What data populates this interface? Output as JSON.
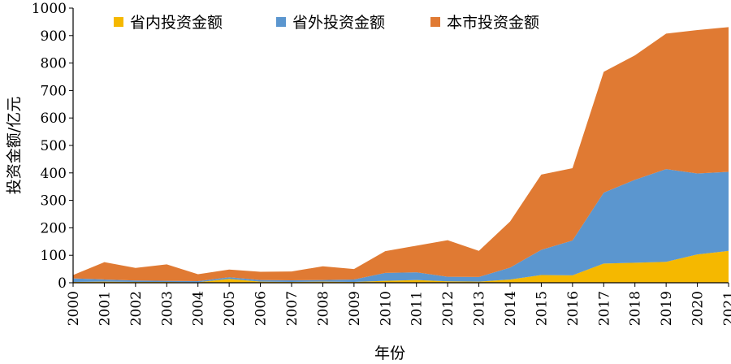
{
  "chart_data": {
    "type": "area",
    "stacked": true,
    "x": [
      "2000",
      "2001",
      "2002",
      "2003",
      "2004",
      "2005",
      "2006",
      "2007",
      "2008",
      "2009",
      "2010",
      "2011",
      "2012",
      "2013",
      "2014",
      "2015",
      "2016",
      "2017",
      "2018",
      "2019",
      "2020",
      "2021"
    ],
    "series": [
      {
        "name": "省内投资金额",
        "color": "#F5B800",
        "values": [
          3,
          4,
          3,
          3,
          2,
          14,
          4,
          3,
          4,
          3,
          7,
          10,
          5,
          4,
          12,
          28,
          27,
          70,
          73,
          76,
          103,
          116
        ]
      },
      {
        "name": "省外投资金额",
        "color": "#5B96CF",
        "values": [
          13,
          8,
          5,
          4,
          4,
          6,
          6,
          6,
          6,
          9,
          29,
          28,
          17,
          17,
          43,
          92,
          127,
          258,
          302,
          338,
          295,
          288
        ]
      },
      {
        "name": "本市投资金额",
        "color": "#E07A33",
        "values": [
          12,
          63,
          46,
          60,
          25,
          28,
          30,
          32,
          50,
          38,
          79,
          97,
          133,
          95,
          168,
          274,
          263,
          440,
          453,
          493,
          522,
          527
        ]
      }
    ],
    "xlabel": "年份",
    "ylabel": "投资金额/亿元",
    "ylim": [
      0,
      1000
    ],
    "yticks": [
      0,
      100,
      200,
      300,
      400,
      500,
      600,
      700,
      800,
      900,
      1000
    ],
    "grid": false,
    "legend_position": "top"
  }
}
